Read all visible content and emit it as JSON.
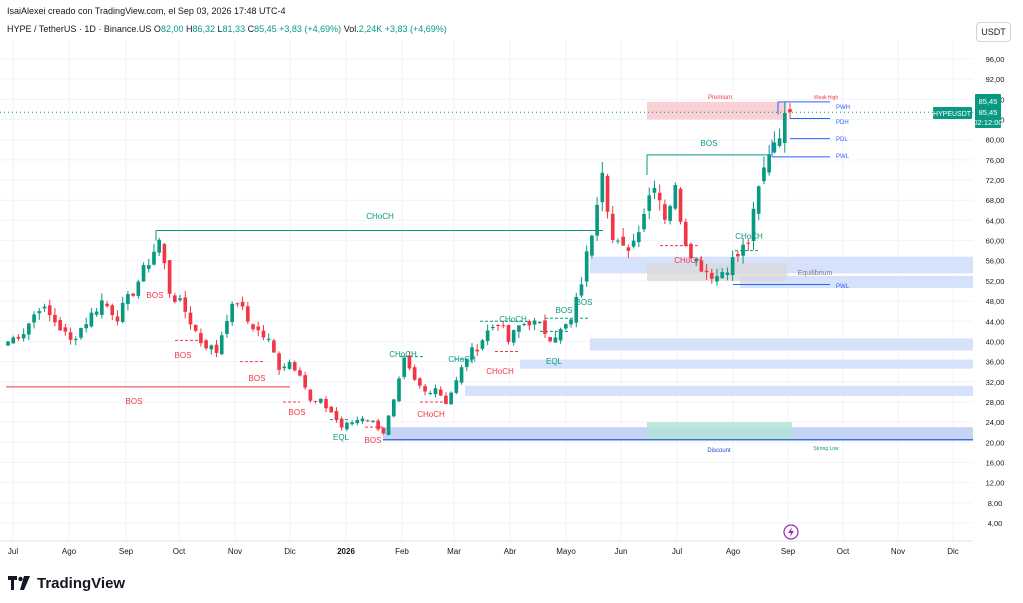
{
  "header": {
    "attribution": "IsaiAlexei creado con TradingView.com, el Sep 03, 2026 17:48 UTC-4",
    "symbol_line": "HYPE / TetherUS · 1D · Binance.US",
    "o_label": "O",
    "o_value": "82,00",
    "h_label": "H",
    "h_value": "86,32",
    "l_label": "L",
    "l_value": "81,33",
    "c_label": "C",
    "c_value": "85,45",
    "change": "+3,83 (+4,69%)",
    "vol_label": "Vol.",
    "vol_value": "2,24K",
    "vol_change": "+3,83 (+4,69%)"
  },
  "currency_button": "USDT",
  "price_axis": {
    "ticks": [
      "96,00",
      "92,00",
      "88,00",
      "84,00",
      "80,00",
      "76,00",
      "72,00",
      "68,00",
      "64,00",
      "60,00",
      "56,00",
      "52,00",
      "48,00",
      "44,00",
      "40,00",
      "36,00",
      "32,00",
      "28,00",
      "24,00",
      "20,00",
      "16,00",
      "12,00",
      "8,00",
      "4,00"
    ],
    "last_price": "85,45",
    "last_label": "HYPEUSDT",
    "last_box_price": "85,45",
    "countdown": "02:12:00"
  },
  "time_axis": [
    "Jul",
    "Ago",
    "Sep",
    "Oct",
    "Nov",
    "Dic",
    "2026",
    "Feb",
    "Mar",
    "Abr",
    "Mayo",
    "Jun",
    "Jul",
    "Ago",
    "Sep",
    "Oct",
    "Nov",
    "Dic"
  ],
  "colors": {
    "up": "#089981",
    "down": "#f23645",
    "blue": "#2962ff",
    "zone_blue": "#d6e2fb",
    "premium": "#f7c6c9",
    "discount": "#b3e4d8",
    "equilibrium": "#d9d9d9"
  },
  "annotations": {
    "premium": "Premium",
    "weak_high": "Weak High",
    "discount": "Discount",
    "strong_low": "Strong Low",
    "equilibrium": "Equilibrium",
    "pwh": "PWH",
    "pdh": "PDH",
    "pdl": "PDL",
    "pwl": "PWL",
    "pwl2": "PWL",
    "bos_labels": [
      "BOS",
      "BOS",
      "BOS",
      "BOS",
      "BOS",
      "BOS",
      "BOS",
      "BOS",
      "BOS"
    ],
    "choch_labels": [
      "CHoCH",
      "CHoCH",
      "CHoCH",
      "CHoCH",
      "CHoCH",
      "CHoCH",
      "CHoCH",
      "CHoCH"
    ],
    "eql_labels": [
      "EQL",
      "EQL"
    ]
  },
  "brand": "TradingView",
  "chart_data": {
    "type": "candlestick",
    "title": "HYPE / TetherUS · 1D · Binance.US",
    "x_range": [
      "Jul",
      "Dic"
    ],
    "ylim": [
      2,
      100
    ],
    "grid": true,
    "close_path": [
      [
        0,
        40
      ],
      [
        3,
        42
      ],
      [
        6,
        47
      ],
      [
        9,
        44
      ],
      [
        12,
        40
      ],
      [
        15,
        44
      ],
      [
        18,
        48
      ],
      [
        21,
        45
      ],
      [
        24,
        50
      ],
      [
        27,
        56
      ],
      [
        29,
        60
      ],
      [
        31,
        50
      ],
      [
        34,
        46
      ],
      [
        37,
        40
      ],
      [
        40,
        38
      ],
      [
        42,
        45
      ],
      [
        44,
        48
      ],
      [
        46,
        44
      ],
      [
        48,
        42
      ],
      [
        50,
        40
      ],
      [
        52,
        35
      ],
      [
        54,
        36
      ],
      [
        56,
        34
      ],
      [
        58,
        28
      ],
      [
        60,
        28
      ],
      [
        62,
        26
      ],
      [
        64,
        23
      ],
      [
        66,
        24
      ],
      [
        68,
        25
      ],
      [
        70,
        24
      ],
      [
        72,
        22
      ],
      [
        74,
        28
      ],
      [
        76,
        36
      ],
      [
        78,
        32
      ],
      [
        80,
        30
      ],
      [
        82,
        31
      ],
      [
        84,
        28
      ],
      [
        86,
        32
      ],
      [
        88,
        37
      ],
      [
        90,
        39
      ],
      [
        92,
        42
      ],
      [
        94,
        44
      ],
      [
        96,
        40
      ],
      [
        98,
        43
      ],
      [
        100,
        44
      ],
      [
        102,
        43
      ],
      [
        104,
        41
      ],
      [
        106,
        42
      ],
      [
        108,
        44
      ],
      [
        110,
        52
      ],
      [
        112,
        62
      ],
      [
        114,
        75
      ],
      [
        116,
        60
      ],
      [
        118,
        58
      ],
      [
        120,
        60
      ],
      [
        122,
        66
      ],
      [
        124,
        72
      ],
      [
        126,
        65
      ],
      [
        128,
        70
      ],
      [
        130,
        60
      ],
      [
        132,
        56
      ],
      [
        134,
        54
      ],
      [
        136,
        53
      ],
      [
        138,
        55
      ],
      [
        140,
        57
      ],
      [
        142,
        60
      ],
      [
        144,
        70
      ],
      [
        146,
        78
      ],
      [
        148,
        82
      ],
      [
        150,
        85.45
      ]
    ],
    "zones": [
      {
        "name": "Premium",
        "from_price": 83,
        "to_price": 87.5
      },
      {
        "name": "Equilibrium",
        "from_price": 51.5,
        "to_price": 55.5
      },
      {
        "name": "Discount",
        "from_price": 20.5,
        "to_price": 24
      }
    ],
    "levels": [
      {
        "name": "PWH",
        "price": 87.5
      },
      {
        "name": "PDH",
        "price": 84.2
      },
      {
        "name": "PDL",
        "price": 80.2
      },
      {
        "name": "PWL",
        "price": 76.6
      },
      {
        "name": "PWL",
        "price": 51.3
      }
    ],
    "last": 85.45
  }
}
